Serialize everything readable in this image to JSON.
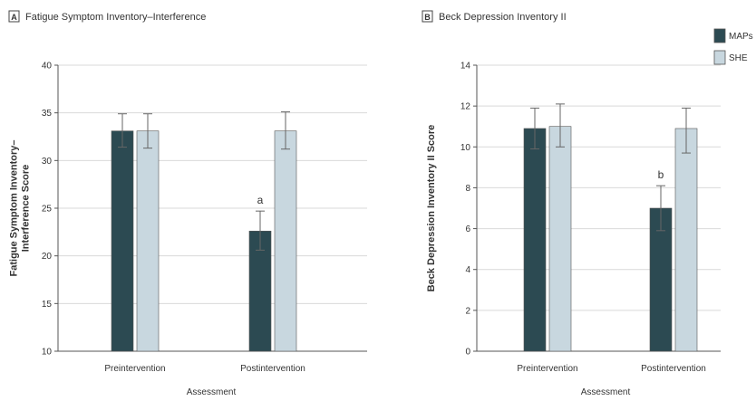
{
  "chart_data": [
    {
      "type": "bar",
      "panel_letter": "A",
      "title": "Fatigue Symptom Inventory–Interference",
      "ylabel_lines": [
        "Fatigue Symptom Inventory–",
        "Interference Score"
      ],
      "xlabel": "Assessment",
      "categories": [
        "Preintervention",
        "Postintervention"
      ],
      "ylim": [
        10,
        40
      ],
      "yticks": [
        10,
        15,
        20,
        25,
        30,
        35,
        40
      ],
      "grid": true,
      "series": [
        {
          "name": "MAPs",
          "color": "#2c4a52",
          "values": [
            33.1,
            22.6
          ],
          "err_low": [
            31.4,
            20.6
          ],
          "err_high": [
            34.9,
            24.7
          ]
        },
        {
          "name": "SHE",
          "color": "#c8d7df",
          "values": [
            33.1,
            33.1
          ],
          "err_low": [
            31.3,
            31.2
          ],
          "err_high": [
            34.9,
            35.1
          ]
        }
      ],
      "annotations": [
        {
          "text": "a",
          "category": 1,
          "series": 0
        }
      ]
    },
    {
      "type": "bar",
      "panel_letter": "B",
      "title": "Beck Depression Inventory II",
      "ylabel_lines": [
        "Beck Depression Inventory II Score"
      ],
      "xlabel": "Assessment",
      "categories": [
        "Preintervention",
        "Postintervention"
      ],
      "ylim": [
        0,
        14
      ],
      "yticks": [
        0,
        2,
        4,
        6,
        8,
        10,
        12,
        14
      ],
      "grid": true,
      "legend": "top-right",
      "series": [
        {
          "name": "MAPs",
          "color": "#2c4a52",
          "values": [
            10.9,
            7.0
          ],
          "err_low": [
            9.9,
            5.9
          ],
          "err_high": [
            11.9,
            8.1
          ]
        },
        {
          "name": "SHE",
          "color": "#c8d7df",
          "values": [
            11.0,
            10.9
          ],
          "err_low": [
            10.0,
            9.7
          ],
          "err_high": [
            12.1,
            11.9
          ]
        }
      ],
      "annotations": [
        {
          "text": "b",
          "category": 1,
          "series": 0
        }
      ]
    }
  ]
}
